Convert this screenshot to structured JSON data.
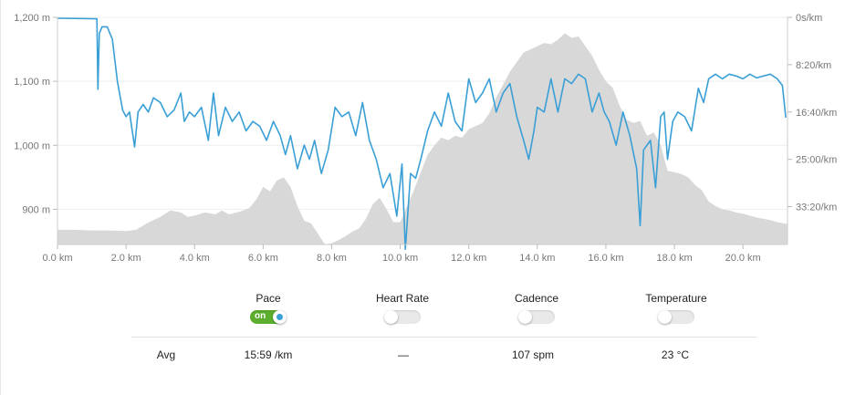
{
  "chart_data": {
    "type": "line",
    "xlabel": "",
    "x_ticks": [
      "0.0 km",
      "2.0 km",
      "4.0 km",
      "6.0 km",
      "8.0 km",
      "10.0 km",
      "12.0 km",
      "14.0 km",
      "16.0 km",
      "18.0 km",
      "20.0 km"
    ],
    "xlim": [
      0,
      21.3
    ],
    "y_left_ticks": [
      "1,200 m",
      "1,100 m",
      "1,000 m",
      "900 m"
    ],
    "y_left_tick_values": [
      1200,
      1100,
      1000,
      900
    ],
    "ylim_left": [
      845,
      1200
    ],
    "y_right_ticks": [
      "0s/km",
      "8:20/km",
      "16:40/km",
      "25:00/km",
      "33:20/km"
    ],
    "y_right_tick_values": [
      0,
      500,
      1000,
      1500,
      2000
    ],
    "ylim_right_sec_per_km": [
      0,
      2400
    ],
    "grid": "horizontal",
    "series": [
      {
        "kind": "area",
        "color": "#d8d8d8",
        "axis": "left",
        "x": [
          0.0,
          0.5,
          1.0,
          1.5,
          2.0,
          2.3,
          2.6,
          3.0,
          3.3,
          3.6,
          3.8,
          4.0,
          4.3,
          4.6,
          4.8,
          5.0,
          5.3,
          5.6,
          5.8,
          6.0,
          6.2,
          6.4,
          6.6,
          6.8,
          7.0,
          7.2,
          7.4,
          7.6,
          7.8,
          8.0,
          8.2,
          8.4,
          8.6,
          8.8,
          9.0,
          9.2,
          9.4,
          9.6,
          9.8,
          10.0,
          10.2,
          10.4,
          10.6,
          10.8,
          11.0,
          11.2,
          11.4,
          11.6,
          11.8,
          12.0,
          12.2,
          12.4,
          12.6,
          12.8,
          13.0,
          13.2,
          13.4,
          13.6,
          13.8,
          14.0,
          14.2,
          14.4,
          14.6,
          14.8,
          15.0,
          15.2,
          15.4,
          15.6,
          15.8,
          16.0,
          16.2,
          16.4,
          16.6,
          16.8,
          17.0,
          17.2,
          17.4,
          17.6,
          17.8,
          18.0,
          18.2,
          18.4,
          18.6,
          18.8,
          19.0,
          19.2,
          19.4,
          19.6,
          19.8,
          20.0,
          20.2,
          20.4,
          20.6,
          20.8,
          21.0,
          21.3
        ],
        "y": [
          868,
          868,
          867,
          867,
          866,
          868,
          878,
          888,
          898,
          895,
          888,
          890,
          895,
          892,
          898,
          892,
          896,
          902,
          915,
          935,
          928,
          945,
          950,
          935,
          905,
          882,
          878,
          862,
          845,
          847,
          852,
          858,
          865,
          870,
          885,
          908,
          918,
          900,
          880,
          880,
          905,
          930,
          958,
          985,
          1000,
          1012,
          1008,
          1015,
          1012,
          1025,
          1030,
          1035,
          1050,
          1075,
          1095,
          1115,
          1130,
          1145,
          1150,
          1155,
          1160,
          1158,
          1165,
          1175,
          1168,
          1170,
          1155,
          1140,
          1118,
          1100,
          1090,
          1062,
          1040,
          1035,
          1038,
          1015,
          1020,
          1000,
          960,
          958,
          955,
          950,
          938,
          930,
          912,
          905,
          900,
          898,
          895,
          893,
          890,
          887,
          885,
          883,
          880,
          877
        ]
      },
      {
        "name": "Pace",
        "kind": "line",
        "color": "#3a9fd6",
        "axis": "right",
        "x": [
          0.0,
          1.15,
          1.18,
          1.22,
          1.3,
          1.45,
          1.6,
          1.75,
          1.9,
          2.0,
          2.1,
          2.25,
          2.35,
          2.5,
          2.65,
          2.8,
          3.0,
          3.2,
          3.4,
          3.6,
          3.7,
          3.85,
          4.0,
          4.2,
          4.4,
          4.55,
          4.7,
          4.9,
          5.1,
          5.3,
          5.5,
          5.7,
          5.9,
          6.1,
          6.3,
          6.5,
          6.65,
          6.8,
          7.0,
          7.2,
          7.35,
          7.5,
          7.7,
          7.9,
          8.1,
          8.3,
          8.5,
          8.7,
          8.9,
          9.1,
          9.3,
          9.5,
          9.7,
          9.9,
          10.05,
          10.15,
          10.3,
          10.45,
          10.6,
          10.8,
          11.0,
          11.2,
          11.4,
          11.6,
          11.8,
          12.0,
          12.2,
          12.4,
          12.6,
          12.8,
          13.0,
          13.2,
          13.4,
          13.6,
          13.75,
          13.9,
          14.0,
          14.2,
          14.4,
          14.6,
          14.8,
          15.0,
          15.2,
          15.4,
          15.6,
          15.8,
          15.95,
          16.1,
          16.3,
          16.5,
          16.7,
          16.9,
          17.0,
          17.1,
          17.3,
          17.45,
          17.6,
          17.7,
          17.8,
          17.95,
          18.1,
          18.3,
          18.5,
          18.7,
          18.85,
          19.0,
          19.2,
          19.4,
          19.6,
          19.8,
          20.0,
          20.2,
          20.4,
          20.6,
          20.8,
          21.0,
          21.15,
          21.25
        ],
        "y": [
          10,
          15,
          760,
          170,
          100,
          100,
          230,
          680,
          980,
          1050,
          1000,
          1370,
          1000,
          920,
          1000,
          850,
          900,
          1050,
          980,
          800,
          1100,
          1000,
          1050,
          950,
          1300,
          800,
          1250,
          950,
          1100,
          1000,
          1200,
          1100,
          1150,
          1300,
          1100,
          1250,
          1450,
          1250,
          1600,
          1350,
          1500,
          1300,
          1650,
          1400,
          950,
          1050,
          1000,
          1250,
          900,
          1300,
          1500,
          1800,
          1650,
          2100,
          1550,
          2450,
          1650,
          1700,
          1500,
          1200,
          1000,
          1150,
          800,
          1100,
          1200,
          650,
          900,
          800,
          650,
          1000,
          800,
          700,
          1050,
          1300,
          1500,
          1200,
          950,
          1000,
          650,
          1000,
          650,
          700,
          600,
          650,
          1000,
          800,
          1000,
          1100,
          1350,
          1000,
          1250,
          1600,
          2200,
          1400,
          1300,
          1800,
          1050,
          1000,
          1500,
          1100,
          1000,
          1050,
          1200,
          750,
          900,
          650,
          600,
          650,
          600,
          620,
          650,
          600,
          640,
          620,
          600,
          650,
          720,
          1060
        ]
      }
    ]
  },
  "toggles": [
    {
      "label": "Pace",
      "state": "on",
      "on_text": "on"
    },
    {
      "label": "Heart Rate",
      "state": "off"
    },
    {
      "label": "Cadence",
      "state": "off"
    },
    {
      "label": "Temperature",
      "state": "off"
    }
  ],
  "avg": {
    "label": "Avg",
    "pace": "15:59 /km",
    "heart_rate": "—",
    "cadence": "107 spm",
    "temperature": "23 °C"
  }
}
